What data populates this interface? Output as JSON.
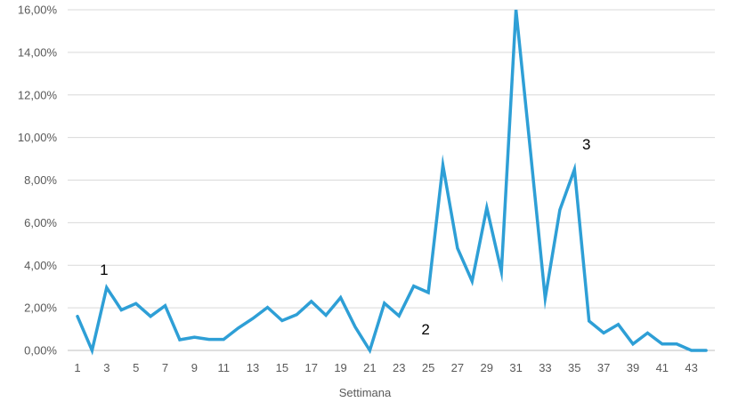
{
  "chart_data": {
    "type": "line",
    "title": "",
    "xlabel": "Settimana",
    "ylabel": "",
    "ylim": [
      0,
      16
    ],
    "grid": "horizontal",
    "legend": "none",
    "y_ticks": [
      "0,00%",
      "2,00%",
      "4,00%",
      "6,00%",
      "8,00%",
      "10,00%",
      "12,00%",
      "14,00%",
      "16,00%"
    ],
    "x_ticks": [
      "1",
      "3",
      "5",
      "7",
      "9",
      "11",
      "13",
      "15",
      "17",
      "19",
      "21",
      "23",
      "25",
      "27",
      "29",
      "31",
      "33",
      "35",
      "37",
      "39",
      "41",
      "43"
    ],
    "x": [
      1,
      2,
      3,
      4,
      5,
      6,
      7,
      8,
      9,
      10,
      11,
      12,
      13,
      14,
      15,
      16,
      17,
      18,
      19,
      20,
      21,
      22,
      23,
      24,
      25,
      26,
      27,
      28,
      29,
      30,
      31,
      32,
      33,
      34,
      35,
      36,
      37,
      38,
      39,
      40,
      41,
      42,
      43,
      44
    ],
    "series": [
      {
        "color": "#2e9fd6",
        "values": [
          1.6,
          0.0,
          2.95,
          1.9,
          2.2,
          1.6,
          2.1,
          0.5,
          0.62,
          0.52,
          0.52,
          1.05,
          1.5,
          2.02,
          1.4,
          1.68,
          2.3,
          1.65,
          2.48,
          1.1,
          0.0,
          2.22,
          1.62,
          3.02,
          2.72,
          8.7,
          4.8,
          3.25,
          6.7,
          3.7,
          16.0,
          9.3,
          2.45,
          6.6,
          8.5,
          1.38,
          0.82,
          1.22,
          0.3,
          0.82,
          0.3,
          0.3,
          0.0,
          0.0
        ]
      }
    ],
    "annotations": [
      {
        "text": "1",
        "x": 3,
        "y": 3.8
      },
      {
        "text": "2",
        "x": 25,
        "y": 1.0
      },
      {
        "text": "3",
        "x": 36,
        "y": 9.7
      }
    ]
  }
}
